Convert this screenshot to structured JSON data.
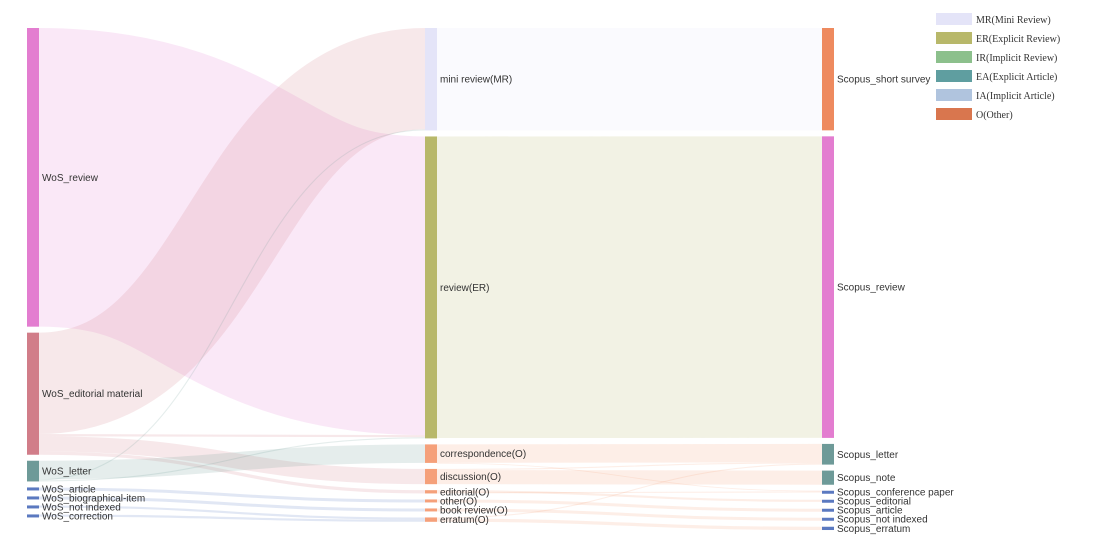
{
  "chart_data": {
    "type": "sankey",
    "legend": {
      "placement": "top-right",
      "items": [
        {
          "label": "MR(Mini Review)",
          "color": "#e4e4f8"
        },
        {
          "label": "ER(Explicit Review)",
          "color": "#b8b86a"
        },
        {
          "label": "IR(Implicit Review)",
          "color": "#8cc08c"
        },
        {
          "label": "EA(Explicit Article)",
          "color": "#5f9ea0"
        },
        {
          "label": "IA(Implicit Article)",
          "color": "#b0c4de"
        },
        {
          "label": "O(Other)",
          "color": "#d9764e"
        }
      ]
    },
    "nodes": [
      {
        "id": "wos_review",
        "label": "WoS_review",
        "column": 0,
        "value": 548,
        "color": "#e37dd0"
      },
      {
        "id": "wos_editorial",
        "label": "WoS_editorial material",
        "column": 0,
        "value": 224,
        "color": "#d17d89"
      },
      {
        "id": "wos_letter",
        "label": "WoS_letter",
        "column": 0,
        "value": 38,
        "color": "#6e9a98"
      },
      {
        "id": "wos_article",
        "label": "WoS_article",
        "column": 0,
        "value": 4,
        "color": "#5b79c0"
      },
      {
        "id": "wos_bio",
        "label": "WoS_biographical-item",
        "column": 0,
        "value": 4,
        "color": "#5b79c0"
      },
      {
        "id": "wos_notindexed",
        "label": "WoS_not indexed",
        "column": 0,
        "value": 4,
        "color": "#5b79c0"
      },
      {
        "id": "wos_correction",
        "label": "WoS_correction",
        "column": 0,
        "value": 4,
        "color": "#5b79c0"
      },
      {
        "id": "mid_mr",
        "label": "mini review(MR)",
        "column": 1,
        "value": 188,
        "color": "#e4e4f8"
      },
      {
        "id": "mid_er",
        "label": "review(ER)",
        "column": 1,
        "value": 554,
        "color": "#b8b86a"
      },
      {
        "id": "mid_corr",
        "label": "correspondence(O)",
        "column": 1,
        "value": 34,
        "color": "#f5a07a"
      },
      {
        "id": "mid_disc",
        "label": "discussion(O)",
        "column": 1,
        "value": 28,
        "color": "#f5a07a"
      },
      {
        "id": "mid_edit",
        "label": "editorial(O)",
        "column": 1,
        "value": 6,
        "color": "#f5a07a"
      },
      {
        "id": "mid_other",
        "label": "other(O)",
        "column": 1,
        "value": 4,
        "color": "#f5a07a"
      },
      {
        "id": "mid_book",
        "label": "book review(O)",
        "column": 1,
        "value": 4,
        "color": "#f5a07a"
      },
      {
        "id": "mid_err",
        "label": "erratum(O)",
        "column": 1,
        "value": 8,
        "color": "#f5a07a"
      },
      {
        "id": "sc_short",
        "label": "Scopus_short survey",
        "column": 2,
        "value": 188,
        "color": "#ee8a5f"
      },
      {
        "id": "sc_review",
        "label": "Scopus_review",
        "column": 2,
        "value": 554,
        "color": "#e37dd0"
      },
      {
        "id": "sc_letter",
        "label": "Scopus_letter",
        "column": 2,
        "value": 38,
        "color": "#6e9a98"
      },
      {
        "id": "sc_note",
        "label": "Scopus_note",
        "column": 2,
        "value": 26,
        "color": "#6e9a98"
      },
      {
        "id": "sc_conf",
        "label": "Scopus_conference paper",
        "column": 2,
        "value": 2,
        "color": "#5b79c0"
      },
      {
        "id": "sc_editorial",
        "label": "Scopus_editorial",
        "column": 2,
        "value": 4,
        "color": "#5b79c0"
      },
      {
        "id": "sc_article",
        "label": "Scopus_article",
        "column": 2,
        "value": 4,
        "color": "#5b79c0"
      },
      {
        "id": "sc_notindexed",
        "label": "Scopus_not indexed",
        "column": 2,
        "value": 4,
        "color": "#5b79c0"
      },
      {
        "id": "sc_erratum",
        "label": "Scopus_erratum",
        "column": 2,
        "value": 6,
        "color": "#5b79c0"
      }
    ],
    "links": [
      {
        "source": "wos_review",
        "target": "mid_er",
        "value": 548
      },
      {
        "source": "wos_editorial",
        "target": "mid_mr",
        "value": 186
      },
      {
        "source": "wos_editorial",
        "target": "mid_er",
        "value": 4
      },
      {
        "source": "wos_editorial",
        "target": "mid_disc",
        "value": 28
      },
      {
        "source": "wos_editorial",
        "target": "mid_edit",
        "value": 6
      },
      {
        "source": "wos_letter",
        "target": "mid_corr",
        "value": 34
      },
      {
        "source": "wos_letter",
        "target": "mid_mr",
        "value": 2
      },
      {
        "source": "wos_letter",
        "target": "mid_er",
        "value": 2
      },
      {
        "source": "wos_article",
        "target": "mid_other",
        "value": 4
      },
      {
        "source": "wos_bio",
        "target": "mid_book",
        "value": 4
      },
      {
        "source": "wos_notindexed",
        "target": "mid_err",
        "value": 4
      },
      {
        "source": "wos_correction",
        "target": "mid_err",
        "value": 4
      },
      {
        "source": "mid_mr",
        "target": "sc_short",
        "value": 188
      },
      {
        "source": "mid_er",
        "target": "sc_review",
        "value": 554
      },
      {
        "source": "mid_corr",
        "target": "sc_letter",
        "value": 34
      },
      {
        "source": "mid_corr",
        "target": "sc_conf",
        "value": 0
      },
      {
        "source": "mid_disc",
        "target": "sc_letter",
        "value": 2
      },
      {
        "source": "mid_disc",
        "target": "sc_note",
        "value": 26
      },
      {
        "source": "mid_edit",
        "target": "sc_editorial",
        "value": 4
      },
      {
        "source": "mid_edit",
        "target": "sc_conf",
        "value": 2
      },
      {
        "source": "mid_other",
        "target": "sc_article",
        "value": 4
      },
      {
        "source": "mid_book",
        "target": "sc_notindexed",
        "value": 4
      },
      {
        "source": "mid_err",
        "target": "sc_letter",
        "value": 2
      },
      {
        "source": "mid_err",
        "target": "sc_erratum",
        "value": 6
      }
    ]
  }
}
